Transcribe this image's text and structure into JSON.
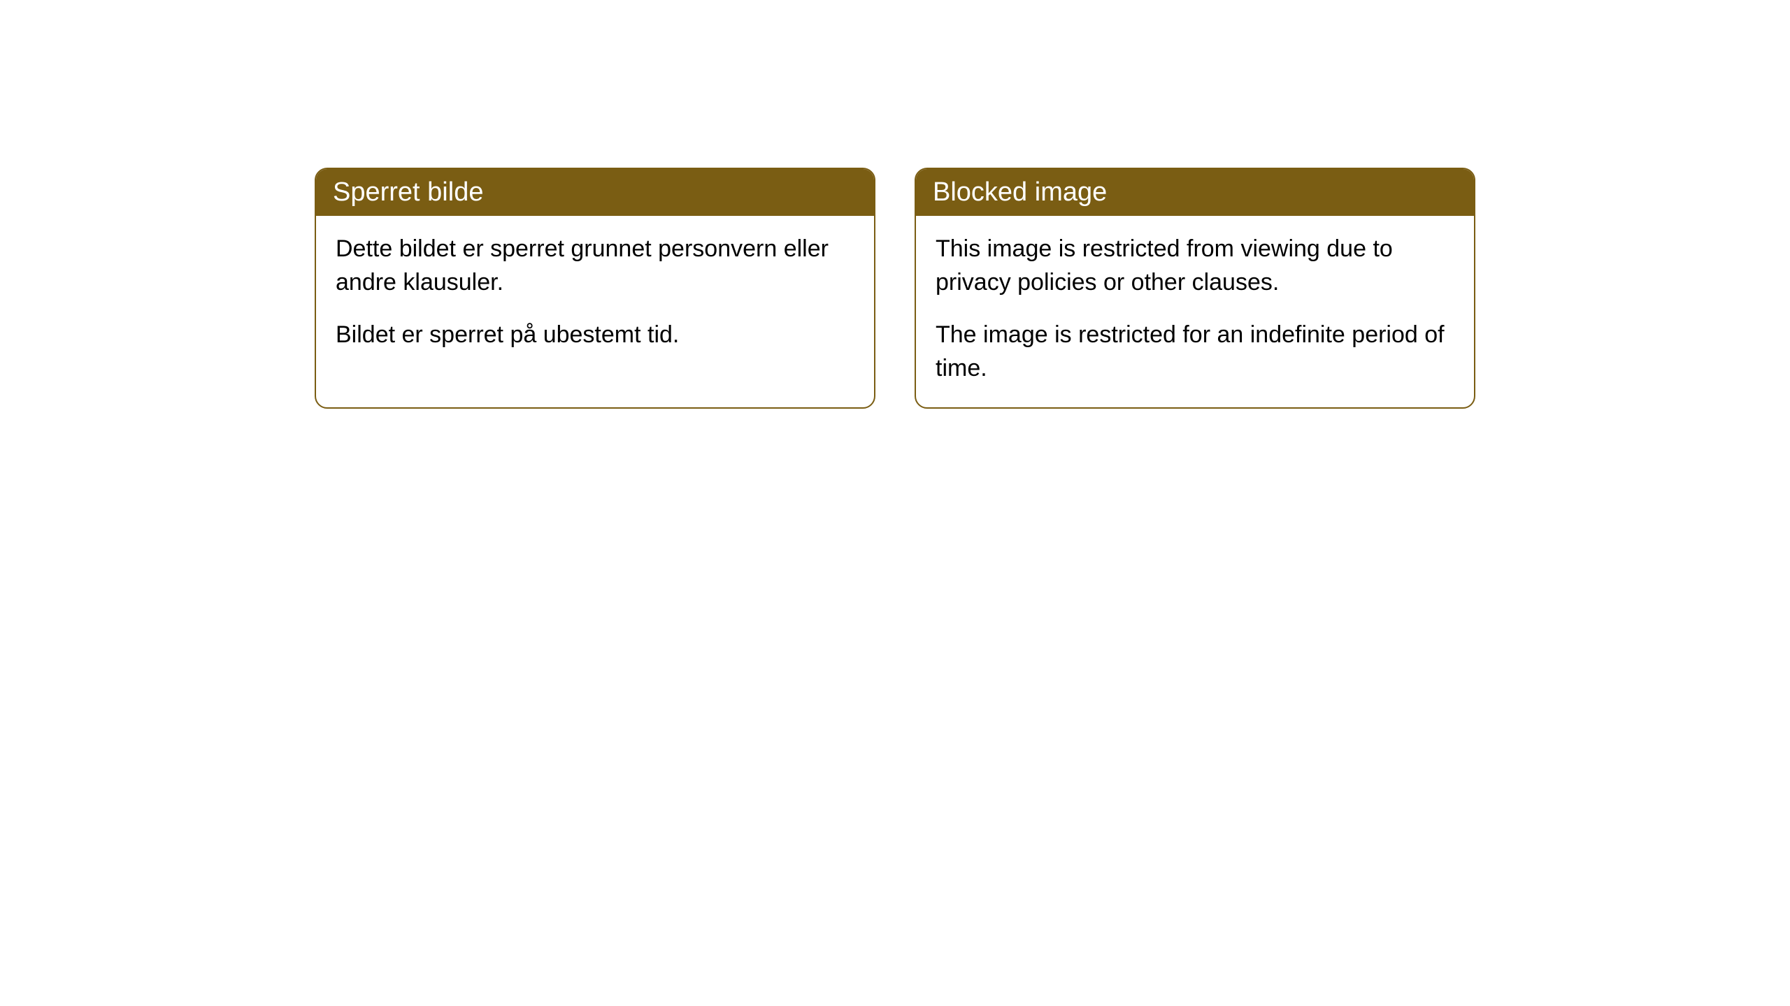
{
  "cards": [
    {
      "title": "Sperret bilde",
      "paragraph1": "Dette bildet er sperret grunnet personvern eller andre klausuler.",
      "paragraph2": "Bildet er sperret på ubestemt tid."
    },
    {
      "title": "Blocked image",
      "paragraph1": "This image is restricted from viewing due to privacy policies or other clauses.",
      "paragraph2": "The image is restricted for an indefinite period of time."
    }
  ],
  "styling": {
    "header_background": "#7a5d13",
    "header_text_color": "#ffffff",
    "border_color": "#7a5d13",
    "body_background": "#ffffff",
    "body_text_color": "#000000",
    "border_radius": 18,
    "header_fontsize": 38,
    "body_fontsize": 34
  }
}
